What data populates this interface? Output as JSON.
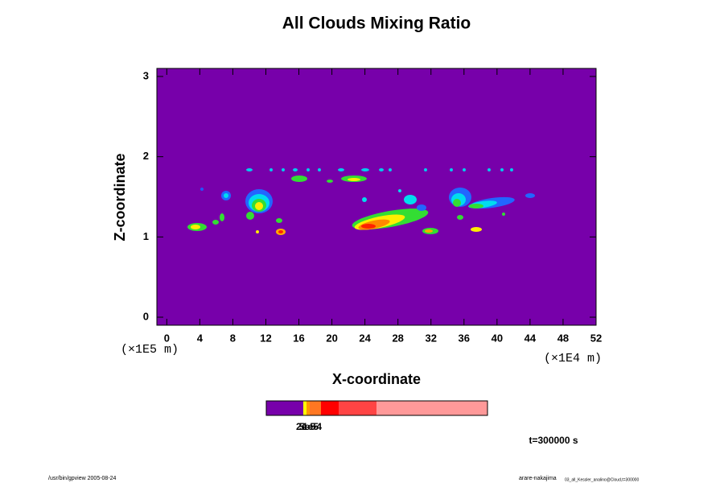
{
  "chart_data": {
    "type": "contour",
    "title": "All Clouds Mixing Ratio",
    "x_label": "X-coordinate",
    "y_label": "Z-coordinate",
    "x_unit": "(×1E4 m)",
    "y_unit": "(×1E5 m)",
    "xlim": [
      -1.2,
      52
    ],
    "ylim": [
      -0.1,
      3.1
    ],
    "xticks": [
      0,
      4,
      8,
      12,
      16,
      20,
      24,
      28,
      32,
      36,
      40,
      44,
      48,
      52
    ],
    "yticks": [
      0,
      1,
      2,
      3
    ],
    "background_color": "#7700aa",
    "colorbar": {
      "colors": [
        "#7700aa",
        "#ffff00",
        "#ff9900",
        "#ff7722",
        "#ff0000",
        "#ff4444",
        "#ff9999"
      ],
      "labels": [
        "2e-5",
        "5e-5",
        "1e-4"
      ]
    },
    "time_label": "t=300000 s",
    "footer_left": "/usr/bin/gpview 2005-08-24",
    "footer_right": "arare-nakajima",
    "footer_right_small": "03_all_Kessler_analino@Cloud,t=300000"
  }
}
